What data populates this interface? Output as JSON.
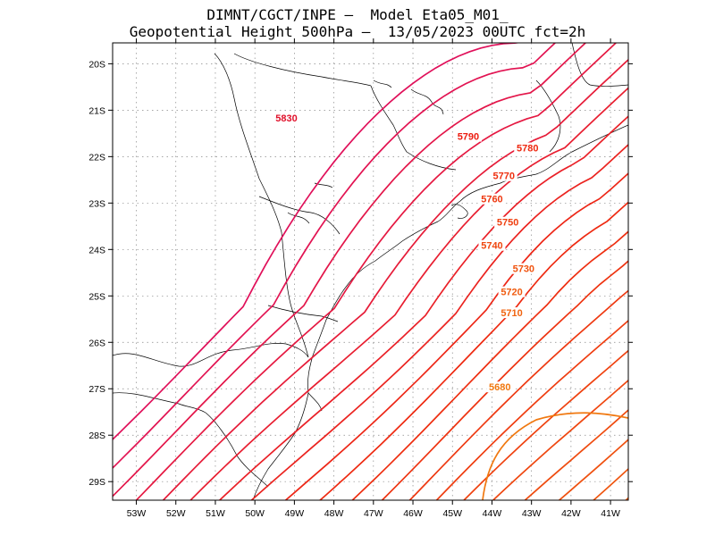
{
  "header": {
    "line1": "DIMNT/CGCT/INPE –  Model Eta05_M01_",
    "line2": "Geopotential Height 500hPa –  13/05/2023 00UTC fct=2h"
  },
  "map": {
    "lat_labels": [
      "20S",
      "21S",
      "22S",
      "23S",
      "24S",
      "25S",
      "26S",
      "27S",
      "28S",
      "29S"
    ],
    "lon_labels": [
      "53W",
      "52W",
      "51W",
      "50W",
      "49W",
      "48W",
      "47W",
      "46W",
      "45W",
      "44W",
      "43W",
      "42W",
      "41W"
    ],
    "lat_values": [
      -20,
      -21,
      -22,
      -23,
      -24,
      -25,
      -26,
      -27,
      -28,
      -29
    ],
    "lon_values": [
      -53,
      -52,
      -51,
      -50,
      -49,
      -48,
      -47,
      -46,
      -45,
      -44,
      -43,
      -42,
      -41
    ],
    "contour_labels": [
      {
        "text": "5830",
        "lon": -49.2,
        "lat": -21.2,
        "color": "#e0102a"
      },
      {
        "text": "5790",
        "lon": -44.6,
        "lat": -21.6,
        "color": "#ec1c10"
      },
      {
        "text": "5780",
        "lon": -43.1,
        "lat": -21.85,
        "color": "#ee2810"
      },
      {
        "text": "5770",
        "lon": -43.7,
        "lat": -22.45,
        "color": "#ee3010"
      },
      {
        "text": "5760",
        "lon": -44.0,
        "lat": -22.95,
        "color": "#ee3810"
      },
      {
        "text": "5750",
        "lon": -43.6,
        "lat": -23.45,
        "color": "#ef4010"
      },
      {
        "text": "5740",
        "lon": -44.0,
        "lat": -23.95,
        "color": "#ef4810"
      },
      {
        "text": "5730",
        "lon": -43.2,
        "lat": -24.45,
        "color": "#f05410"
      },
      {
        "text": "5720",
        "lon": -43.5,
        "lat": -24.95,
        "color": "#f05c10"
      },
      {
        "text": "5710",
        "lon": -43.5,
        "lat": -25.4,
        "color": "#f06410"
      },
      {
        "text": "5680",
        "lon": -43.8,
        "lat": -27.0,
        "color": "#f07810"
      }
    ],
    "palette": {
      "north": "#e0105a",
      "mid": "#ee2810",
      "south": "#f07810",
      "coast": "#000000",
      "grid": "#888888"
    }
  }
}
